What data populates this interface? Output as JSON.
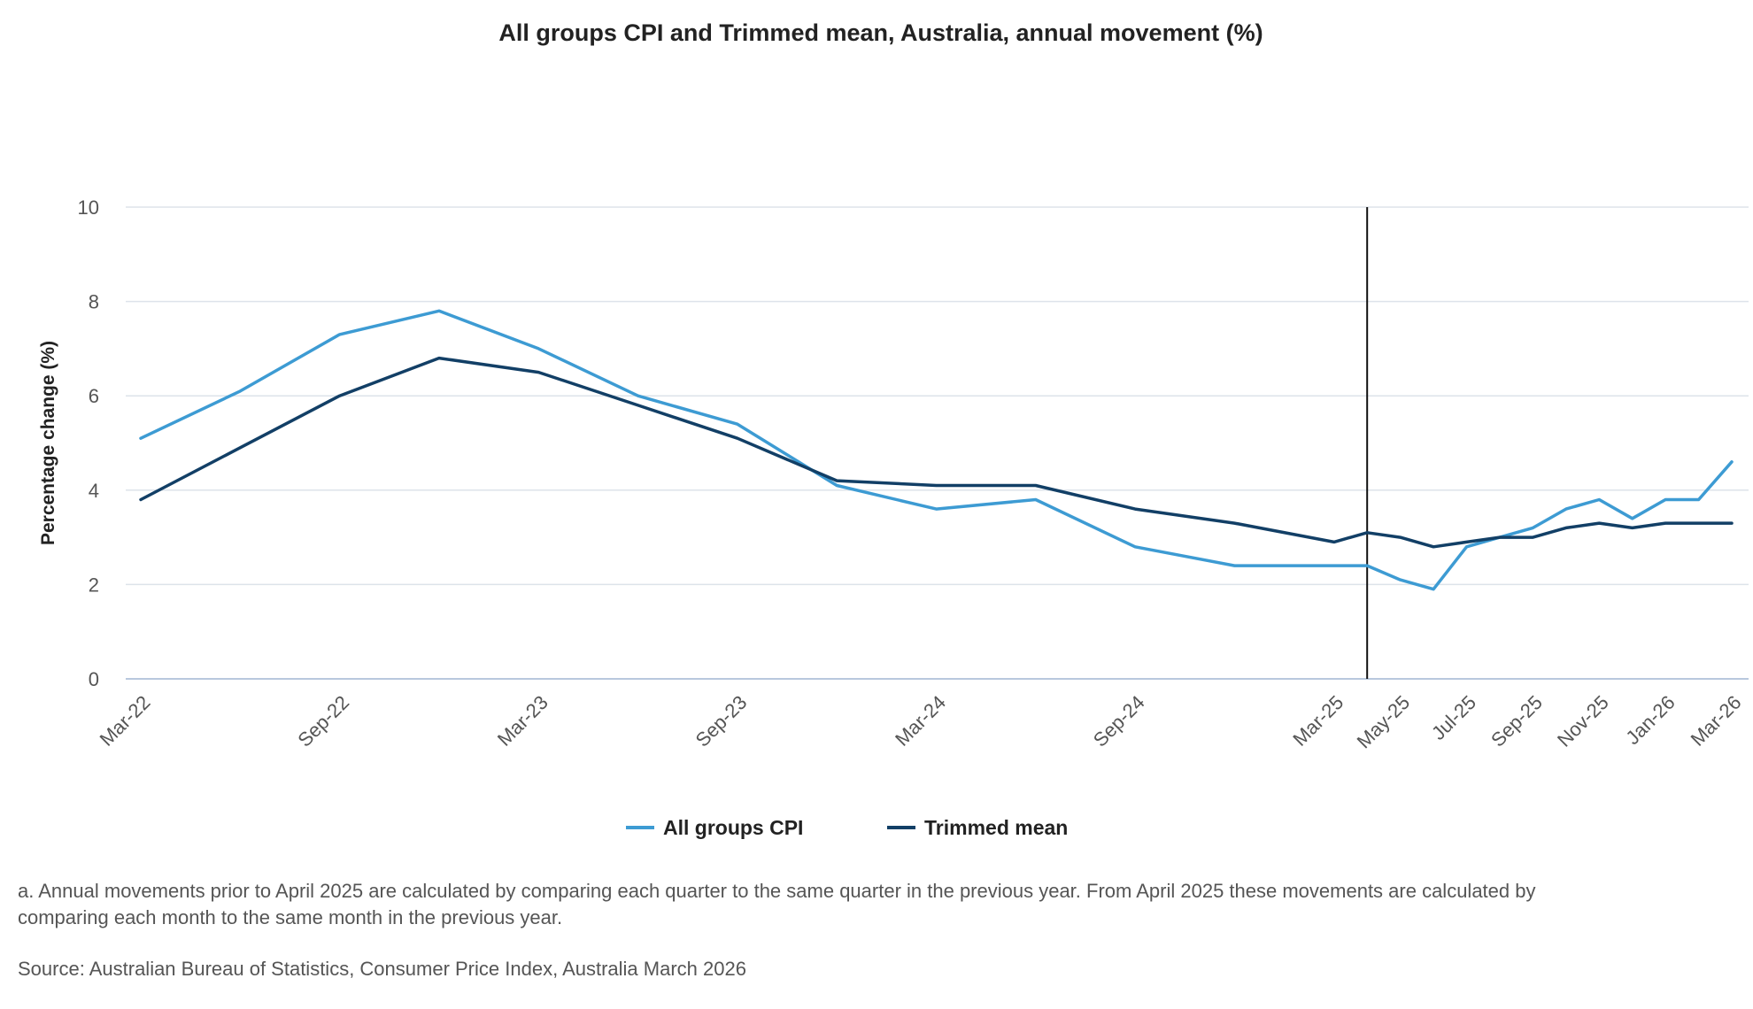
{
  "chart_data": {
    "type": "line",
    "title": "All groups CPI and Trimmed mean, Australia, annual movement (%)",
    "ylabel": "Percentage change (%)",
    "xlabel": "",
    "ylim": [
      0,
      10
    ],
    "yticks": [
      0,
      2,
      4,
      6,
      8,
      10
    ],
    "grid": true,
    "legend_position": "bottom-center",
    "x": [
      "Mar-22",
      "Jun-22",
      "Sep-22",
      "Dec-22",
      "Mar-23",
      "Jun-23",
      "Sep-23",
      "Dec-23",
      "Mar-24",
      "Jun-24",
      "Sep-24",
      "Dec-24",
      "Mar-25",
      "Apr-25",
      "May-25",
      "Jun-25",
      "Jul-25",
      "Aug-25",
      "Sep-25",
      "Oct-25",
      "Nov-25",
      "Dec-25",
      "Jan-26",
      "Feb-26",
      "Mar-26"
    ],
    "x_time_index": [
      0,
      3,
      6,
      9,
      12,
      15,
      18,
      21,
      24,
      27,
      30,
      33,
      36,
      37,
      38,
      39,
      40,
      41,
      42,
      43,
      44,
      45,
      46,
      47,
      48
    ],
    "x_tick_labels": [
      "Mar-22",
      "Sep-22",
      "Mar-23",
      "Sep-23",
      "Mar-24",
      "Sep-24",
      "Mar-25",
      "May-25",
      "Jul-25",
      "Sep-25",
      "Nov-25",
      "Jan-26",
      "Mar-26"
    ],
    "x_tick_index": [
      0,
      6,
      12,
      18,
      24,
      30,
      36,
      38,
      40,
      42,
      44,
      46,
      48
    ],
    "break_marker": {
      "index": 37,
      "description": "Change from quarterly to monthly comparison"
    },
    "series": [
      {
        "name": "All groups CPI",
        "color": "#3d9bd3",
        "values": [
          5.1,
          6.1,
          7.3,
          7.8,
          7.0,
          6.0,
          5.4,
          4.1,
          3.6,
          3.8,
          2.8,
          2.4,
          2.4,
          2.4,
          2.1,
          1.9,
          2.8,
          3.0,
          3.2,
          3.6,
          3.8,
          3.4,
          3.8,
          3.8,
          4.6
        ]
      },
      {
        "name": "Trimmed mean",
        "color": "#123f66",
        "values": [
          3.8,
          4.9,
          6.0,
          6.8,
          6.5,
          5.8,
          5.1,
          4.2,
          4.1,
          4.1,
          3.6,
          3.3,
          2.9,
          3.1,
          3.0,
          2.8,
          2.9,
          3.0,
          3.0,
          3.2,
          3.3,
          3.2,
          3.3,
          3.3,
          3.3
        ]
      }
    ]
  },
  "notes": {
    "footnote": "a. Annual movements prior to April 2025 are calculated by comparing each quarter to the same quarter in the previous year.  From April 2025 these movements are calculated by comparing each month to the same month in the previous year.",
    "source": "Source: Australian Bureau of Statistics, Consumer Price Index, Australia March 2026"
  }
}
